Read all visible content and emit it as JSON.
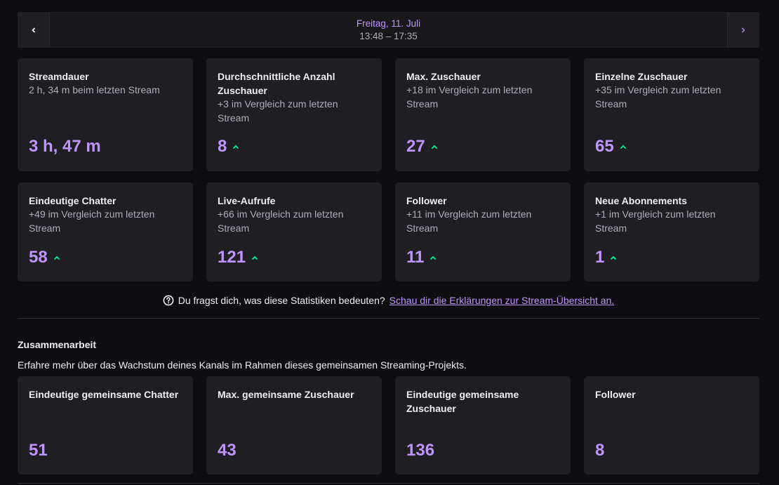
{
  "date_nav": {
    "date": "Freitag, 11. Juli",
    "time": "13:48 – 17:35",
    "prev_icon": "chevron-left-icon",
    "next_icon": "chevron-right-icon"
  },
  "stats": [
    {
      "title": "Streamdauer",
      "sub": "2 h, 34 m beim letzten Stream",
      "value": "3 h, 47 m",
      "trend": ""
    },
    {
      "title": "Durchschnittliche Anzahl Zuschauer",
      "sub": "+3 im Vergleich zum letzten Stream",
      "value": "8",
      "trend": "up"
    },
    {
      "title": "Max. Zuschauer",
      "sub": "+18 im Vergleich zum letzten Stream",
      "value": "27",
      "trend": "up"
    },
    {
      "title": "Einzelne Zuschauer",
      "sub": "+35 im Vergleich zum letzten Stream",
      "value": "65",
      "trend": "up"
    },
    {
      "title": "Eindeutige Chatter",
      "sub": "+49 im Vergleich zum letzten Stream",
      "value": "58",
      "trend": "up"
    },
    {
      "title": "Live-Aufrufe",
      "sub": "+66 im Vergleich zum letzten Stream",
      "value": "121",
      "trend": "up"
    },
    {
      "title": "Follower",
      "sub": "+11 im Vergleich zum letzten Stream",
      "value": "11",
      "trend": "up"
    },
    {
      "title": "Neue Abonnements",
      "sub": "+1 im Vergleich zum letzten Stream",
      "value": "1",
      "trend": "up"
    }
  ],
  "help": {
    "text": "Du fragst dich, was diese Statistiken bedeuten?",
    "link": "Schau dir die Erklärungen zur Stream-Übersicht an."
  },
  "collab": {
    "title": "Zusammenarbeit",
    "description": "Erfahre mehr über das Wachstum deines Kanals im Rahmen dieses gemeinsamen Streaming-Projekts.",
    "cards": [
      {
        "title": "Eindeutige gemeinsame Chatter",
        "value": "51"
      },
      {
        "title": "Max. gemeinsame Zuschauer",
        "value": "43"
      },
      {
        "title": "Eindeutige gemeinsame Zuschauer",
        "value": "136"
      },
      {
        "title": "Follower",
        "value": "8"
      }
    ]
  },
  "colors": {
    "accent": "#bf94ff",
    "trend_up": "#00f593",
    "background": "#0e0e10",
    "card": "#1f1f23"
  }
}
